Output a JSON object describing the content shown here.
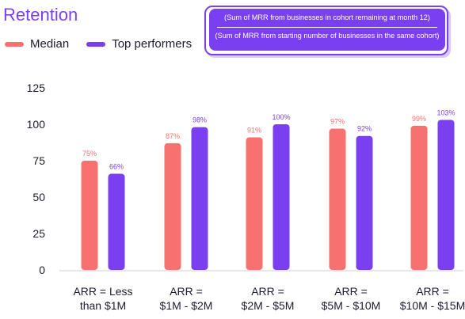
{
  "title": "Retention",
  "legend": [
    {
      "label": "Median",
      "color": "#f87171"
    },
    {
      "label": "Top performers",
      "color": "#7b3ff2"
    }
  ],
  "formula": {
    "numerator": "(Sum of MRR from businesses in cohort remaining at month 12)",
    "denominator": "(Sum of MRR from starting number of businesses in the same cohort)"
  },
  "chart_data": {
    "type": "bar",
    "categories": [
      [
        "ARR = Less",
        "than $1M"
      ],
      [
        "ARR =",
        "$1M - $2M"
      ],
      [
        "ARR =",
        "$2M - $5M"
      ],
      [
        "ARR =",
        "$5M - $10M"
      ],
      [
        "ARR =",
        "$10M - $15M"
      ]
    ],
    "series": [
      {
        "name": "Median",
        "values": [
          75,
          87,
          91,
          97,
          99
        ],
        "labels": [
          "75%",
          "87%",
          "91%",
          "97%",
          "99%"
        ],
        "color": "#f87171"
      },
      {
        "name": "Top performers",
        "values": [
          66,
          98,
          100,
          92,
          103
        ],
        "labels": [
          "66%",
          "98%",
          "100%",
          "92%",
          "103%"
        ],
        "color": "#7b3ff2"
      }
    ],
    "yticks": [
      0,
      25,
      50,
      75,
      100,
      125
    ],
    "ylim": [
      0,
      125
    ],
    "grid": false,
    "legend_position": "top-left"
  }
}
